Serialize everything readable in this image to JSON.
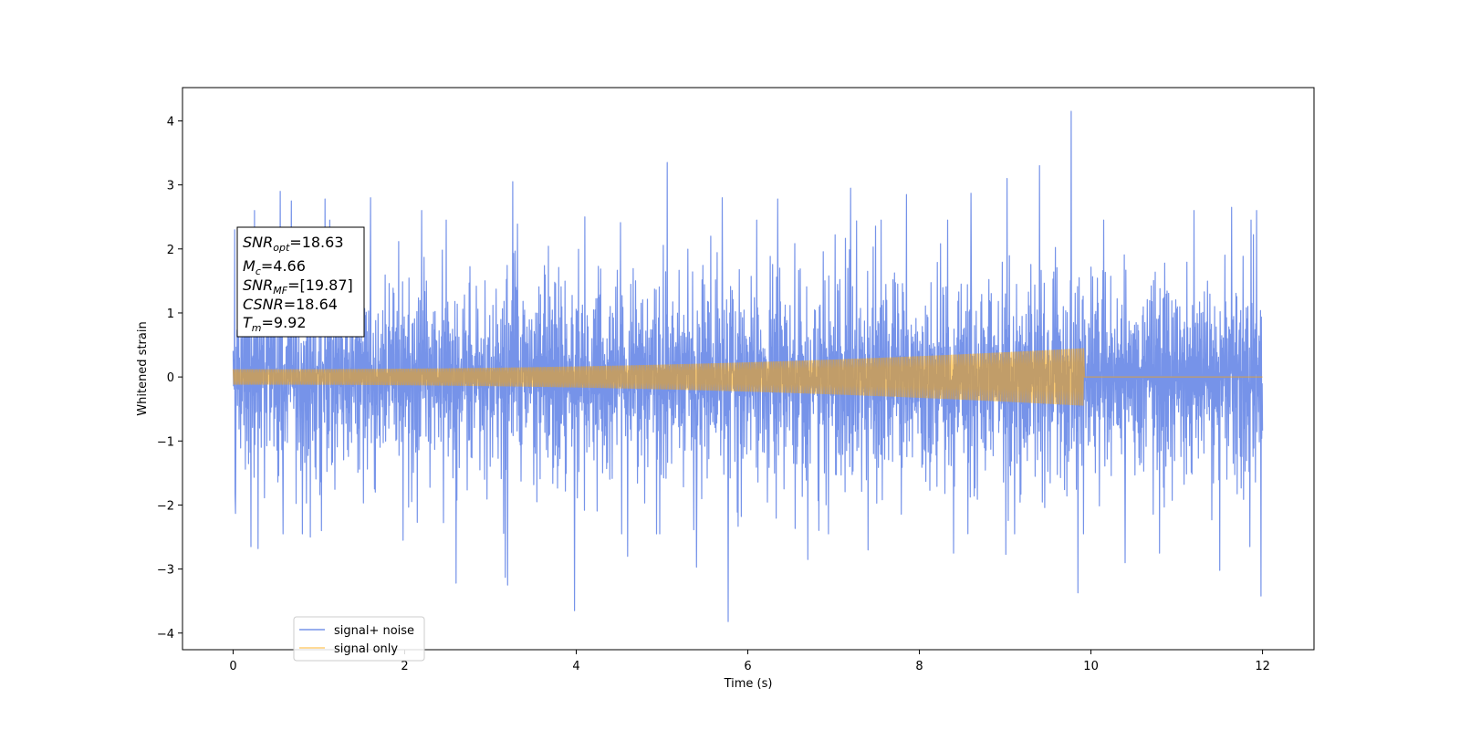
{
  "chart_data": {
    "type": "line",
    "title": "",
    "xlabel": "Time (s)",
    "ylabel": "Whitened strain",
    "xlim": [
      -0.59,
      12.6
    ],
    "ylim": [
      -4.26,
      4.52
    ],
    "xticks": [
      0,
      2,
      4,
      6,
      8,
      10,
      12
    ],
    "yticks": [
      -4,
      -3,
      -2,
      -1,
      0,
      1,
      2,
      3,
      4
    ],
    "grid": false,
    "legend_position": "lower-left",
    "series": [
      {
        "name": "signal+ noise",
        "color": "#4169e1",
        "alpha": 0.72,
        "x_range": [
          0,
          12
        ],
        "envelope_max": 4.15,
        "envelope_min": -3.82,
        "peaks": [
          {
            "x": 0.02,
            "y": 2.3
          },
          {
            "x": 0.25,
            "y": 2.6
          },
          {
            "x": 0.55,
            "y": 2.9
          },
          {
            "x": 0.68,
            "y": 2.75
          },
          {
            "x": 1.07,
            "y": 2.78
          },
          {
            "x": 1.6,
            "y": 2.8
          },
          {
            "x": 2.2,
            "y": 2.6
          },
          {
            "x": 3.26,
            "y": 3.05
          },
          {
            "x": 4.1,
            "y": 2.5
          },
          {
            "x": 5.06,
            "y": 3.35
          },
          {
            "x": 5.7,
            "y": 2.8
          },
          {
            "x": 6.35,
            "y": 2.78
          },
          {
            "x": 7.2,
            "y": 2.95
          },
          {
            "x": 7.85,
            "y": 2.85
          },
          {
            "x": 8.6,
            "y": 2.87
          },
          {
            "x": 9.02,
            "y": 3.1
          },
          {
            "x": 9.4,
            "y": 3.3
          },
          {
            "x": 9.77,
            "y": 4.15
          },
          {
            "x": 10.4,
            "y": 2.9
          },
          {
            "x": 11.2,
            "y": 2.6
          },
          {
            "x": 11.64,
            "y": 2.65
          },
          {
            "x": 11.93,
            "y": 2.6
          }
        ],
        "troughs": [
          {
            "x": 0.03,
            "y": -2.13
          },
          {
            "x": 0.21,
            "y": -2.65
          },
          {
            "x": 0.29,
            "y": -2.68
          },
          {
            "x": 0.58,
            "y": -2.45
          },
          {
            "x": 0.9,
            "y": -2.5
          },
          {
            "x": 1.98,
            "y": -2.55
          },
          {
            "x": 2.6,
            "y": -3.22
          },
          {
            "x": 3.17,
            "y": -3.13
          },
          {
            "x": 3.2,
            "y": -3.25
          },
          {
            "x": 3.98,
            "y": -3.65
          },
          {
            "x": 4.6,
            "y": -2.8
          },
          {
            "x": 5.4,
            "y": -2.97
          },
          {
            "x": 5.77,
            "y": -3.82
          },
          {
            "x": 6.7,
            "y": -2.85
          },
          {
            "x": 7.4,
            "y": -2.7
          },
          {
            "x": 8.4,
            "y": -2.75
          },
          {
            "x": 9.01,
            "y": -2.77
          },
          {
            "x": 9.85,
            "y": -3.37
          },
          {
            "x": 10.4,
            "y": -2.9
          },
          {
            "x": 10.8,
            "y": -2.75
          },
          {
            "x": 11.5,
            "y": -3.02
          },
          {
            "x": 11.85,
            "y": -2.65
          },
          {
            "x": 11.98,
            "y": -3.42
          }
        ]
      },
      {
        "name": "signal only",
        "color": "#ffa500",
        "alpha": 0.55,
        "x_range": [
          0,
          12
        ],
        "merger_time": 9.92,
        "amplitude_start": 0.12,
        "amplitude_end": 0.45,
        "post_merger_value": 0.0
      }
    ],
    "annotation": {
      "lines": [
        {
          "base": "SNR",
          "sub": "opt",
          "rest": "=18.63"
        },
        {
          "base": "M",
          "sub": "c",
          "rest": "=4.66"
        },
        {
          "base": "SNR",
          "sub": "MF",
          "rest": "=[19.87]"
        },
        {
          "base": "CSNR",
          "sub": "",
          "rest": "=18.64"
        },
        {
          "base": "T",
          "sub": "m",
          "rest": "=9.92"
        }
      ]
    }
  }
}
